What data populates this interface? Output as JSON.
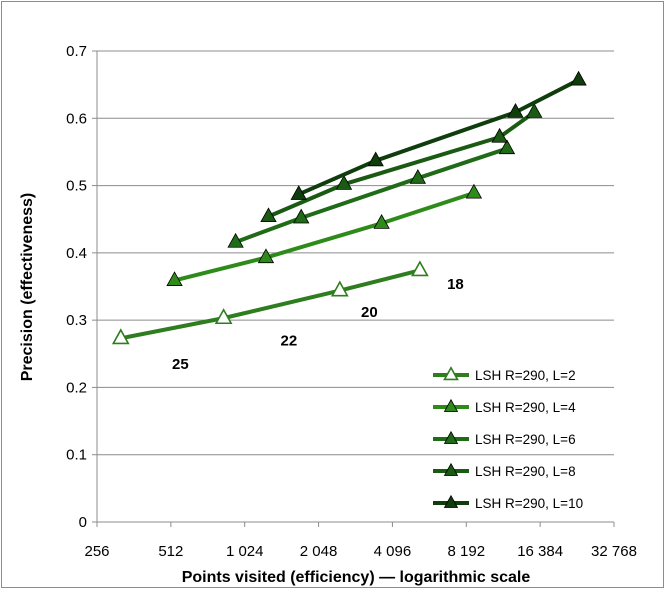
{
  "chart_data": {
    "type": "line",
    "title": "",
    "xlabel": "Points visited (efficiency) — logarithmic scale",
    "ylabel": "Precision (effectiveness)",
    "x_scale": "log2",
    "xlim": [
      256,
      32768
    ],
    "ylim": [
      0,
      0.7
    ],
    "x_ticks": [
      {
        "value": 256,
        "label": "256"
      },
      {
        "value": 512,
        "label": "512"
      },
      {
        "value": 1024,
        "label": "1 024"
      },
      {
        "value": 2048,
        "label": "2 048"
      },
      {
        "value": 4096,
        "label": "4 096"
      },
      {
        "value": 8192,
        "label": "8 192"
      },
      {
        "value": 16384,
        "label": "16 384"
      },
      {
        "value": 32768,
        "label": "32 768"
      }
    ],
    "y_ticks": [
      {
        "value": 0,
        "label": "0"
      },
      {
        "value": 0.1,
        "label": "0.1"
      },
      {
        "value": 0.2,
        "label": "0.2"
      },
      {
        "value": 0.3,
        "label": "0.3"
      },
      {
        "value": 0.4,
        "label": "0.4"
      },
      {
        "value": 0.5,
        "label": "0.5"
      },
      {
        "value": 0.6,
        "label": "0.6"
      },
      {
        "value": 0.7,
        "label": "0.7"
      }
    ],
    "grid": "horizontal",
    "legend_position": "bottom-right",
    "series": [
      {
        "name": "LSH R=290, L=2",
        "color": "#2e7d1f",
        "marker": "hollow-triangle",
        "x": [
          320,
          840,
          2500,
          5300
        ],
        "y": [
          0.273,
          0.303,
          0.344,
          0.374
        ]
      },
      {
        "name": "LSH R=290, L=4",
        "color": "#2e8b1a",
        "marker": "filled-triangle",
        "x": [
          530,
          1250,
          3700,
          8800
        ],
        "y": [
          0.359,
          0.393,
          0.444,
          0.489
        ]
      },
      {
        "name": "LSH R=290, L=6",
        "color": "#1f6b17",
        "marker": "filled-triangle",
        "x": [
          940,
          1740,
          5200,
          12000
        ],
        "y": [
          0.416,
          0.452,
          0.511,
          0.555
        ]
      },
      {
        "name": "LSH R=290, L=8",
        "color": "#1a5a12",
        "marker": "filled-triangle",
        "x": [
          1280,
          2600,
          11200,
          15500
        ],
        "y": [
          0.454,
          0.502,
          0.572,
          0.609
        ]
      },
      {
        "name": "LSH R=290, L=10",
        "color": "#0f3d0c",
        "marker": "filled-triangle",
        "x": [
          1700,
          3500,
          13000,
          23500
        ],
        "y": [
          0.487,
          0.537,
          0.609,
          0.657
        ]
      }
    ],
    "annotations": [
      {
        "text": "25",
        "x": 560,
        "y": 0.235
      },
      {
        "text": "22",
        "x": 1550,
        "y": 0.27
      },
      {
        "text": "20",
        "x": 3300,
        "y": 0.312
      },
      {
        "text": "18",
        "x": 7400,
        "y": 0.354
      }
    ]
  }
}
